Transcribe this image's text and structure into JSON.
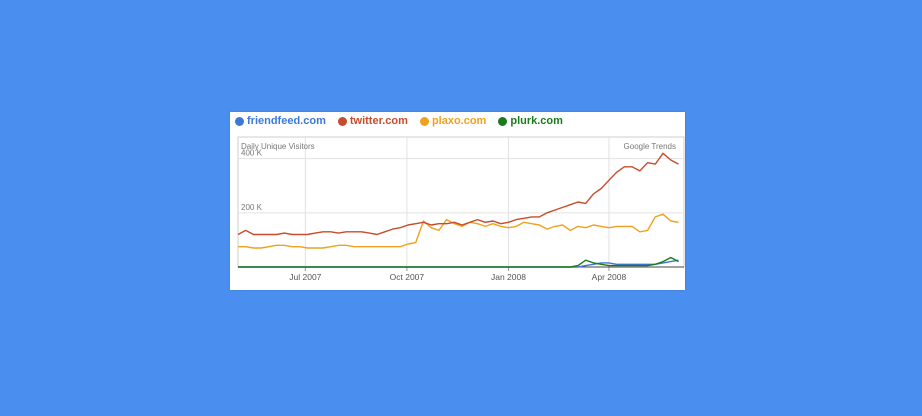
{
  "chart_data": {
    "type": "line",
    "ylabel": "Daily Unique Visitors",
    "watermark": "Google Trends",
    "ylim": [
      0,
      480000
    ],
    "xlim": [
      "2007-05-01",
      "2008-06-08"
    ],
    "y_ticks": [
      {
        "value": 200000,
        "label": "200 K"
      },
      {
        "value": 400000,
        "label": "400 K"
      }
    ],
    "x_ticks": [
      {
        "date": "2007-07-01",
        "label": "Jul 2007"
      },
      {
        "date": "2007-10-01",
        "label": "Oct 2007"
      },
      {
        "date": "2008-01-01",
        "label": "Jan 2008"
      },
      {
        "date": "2008-04-01",
        "label": "Apr 2008"
      }
    ],
    "grid": true,
    "legend_position": "top",
    "x": [
      "2007-05-01",
      "2007-05-08",
      "2007-05-15",
      "2007-05-22",
      "2007-05-29",
      "2007-06-05",
      "2007-06-12",
      "2007-06-19",
      "2007-06-26",
      "2007-07-03",
      "2007-07-10",
      "2007-07-17",
      "2007-07-24",
      "2007-07-31",
      "2007-08-07",
      "2007-08-14",
      "2007-08-21",
      "2007-08-28",
      "2007-09-04",
      "2007-09-11",
      "2007-09-18",
      "2007-09-25",
      "2007-10-02",
      "2007-10-09",
      "2007-10-16",
      "2007-10-23",
      "2007-10-30",
      "2007-11-06",
      "2007-11-13",
      "2007-11-20",
      "2007-11-27",
      "2007-12-04",
      "2007-12-11",
      "2007-12-18",
      "2007-12-25",
      "2008-01-01",
      "2008-01-08",
      "2008-01-15",
      "2008-01-22",
      "2008-01-29",
      "2008-02-05",
      "2008-02-12",
      "2008-02-19",
      "2008-02-26",
      "2008-03-04",
      "2008-03-11",
      "2008-03-18",
      "2008-03-25",
      "2008-04-01",
      "2008-04-08",
      "2008-04-15",
      "2008-04-22",
      "2008-04-29",
      "2008-05-06",
      "2008-05-13",
      "2008-05-20",
      "2008-05-27",
      "2008-06-03"
    ],
    "series": [
      {
        "name": "friendfeed.com",
        "color": "#3c78d8",
        "values": [
          0,
          0,
          0,
          0,
          0,
          0,
          0,
          0,
          0,
          0,
          0,
          0,
          0,
          0,
          0,
          0,
          0,
          0,
          0,
          0,
          0,
          0,
          0,
          0,
          0,
          0,
          0,
          0,
          0,
          0,
          0,
          0,
          0,
          0,
          0,
          0,
          0,
          0,
          0,
          0,
          0,
          0,
          0,
          0,
          0,
          5000,
          10000,
          15000,
          15000,
          10000,
          10000,
          10000,
          10000,
          10000,
          10000,
          15000,
          20000,
          25000
        ]
      },
      {
        "name": "twitter.com",
        "color": "#c64c2c",
        "values": [
          120000,
          135000,
          120000,
          120000,
          120000,
          120000,
          125000,
          120000,
          120000,
          120000,
          125000,
          130000,
          130000,
          125000,
          130000,
          130000,
          130000,
          125000,
          120000,
          130000,
          140000,
          145000,
          155000,
          160000,
          165000,
          155000,
          160000,
          160000,
          165000,
          155000,
          165000,
          175000,
          165000,
          170000,
          160000,
          165000,
          175000,
          180000,
          185000,
          185000,
          200000,
          210000,
          220000,
          230000,
          240000,
          235000,
          270000,
          290000,
          320000,
          350000,
          370000,
          370000,
          355000,
          385000,
          380000,
          420000,
          395000,
          380000
        ]
      },
      {
        "name": "plaxo.com",
        "color": "#f0a11d",
        "values": [
          75000,
          75000,
          70000,
          70000,
          75000,
          80000,
          80000,
          75000,
          75000,
          70000,
          70000,
          70000,
          75000,
          80000,
          80000,
          75000,
          75000,
          75000,
          75000,
          75000,
          75000,
          75000,
          85000,
          90000,
          170000,
          145000,
          135000,
          175000,
          160000,
          150000,
          165000,
          160000,
          150000,
          160000,
          150000,
          145000,
          150000,
          165000,
          160000,
          155000,
          140000,
          150000,
          155000,
          135000,
          150000,
          145000,
          155000,
          150000,
          145000,
          150000,
          150000,
          150000,
          130000,
          135000,
          185000,
          195000,
          170000,
          165000
        ]
      },
      {
        "name": "plurk.com",
        "color": "#1c7a1c",
        "values": [
          0,
          0,
          0,
          0,
          0,
          0,
          0,
          0,
          0,
          0,
          0,
          0,
          0,
          0,
          0,
          0,
          0,
          0,
          0,
          0,
          0,
          0,
          0,
          0,
          0,
          0,
          0,
          0,
          0,
          0,
          0,
          0,
          0,
          0,
          0,
          0,
          0,
          0,
          0,
          0,
          0,
          0,
          0,
          0,
          5000,
          25000,
          15000,
          10000,
          5000,
          5000,
          5000,
          5000,
          5000,
          5000,
          10000,
          20000,
          35000,
          20000
        ]
      }
    ]
  }
}
